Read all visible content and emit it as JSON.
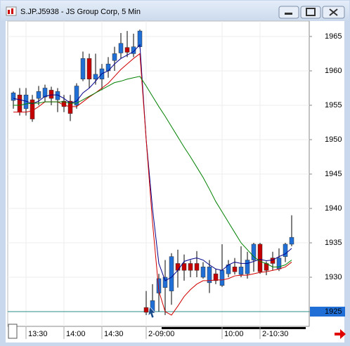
{
  "chart_data": {
    "type": "candlestick",
    "title": "S.JP.J5938 - JS Group Corp, 5 Min",
    "categories": [
      null,
      null,
      "13:30",
      null,
      null,
      null,
      null,
      null,
      "14:00",
      null,
      null,
      null,
      null,
      null,
      "14:30",
      null,
      null,
      null,
      null,
      null,
      null,
      "2-09:00",
      null,
      null,
      null,
      null,
      null,
      null,
      null,
      null,
      null,
      null,
      null,
      "10:00",
      null,
      null,
      null,
      null,
      null,
      "2-10:30",
      null,
      null,
      null,
      null,
      null
    ],
    "open": [
      1955.7,
      1956.5,
      1954.5,
      1955.8,
      1956,
      1956.2,
      1957.2,
      1955.8,
      1955.6,
      1955.6,
      1955,
      1958.8,
      1961.8,
      1958.8,
      1958.8,
      1960,
      1961.5,
      1962.6,
      1963.4,
      1962.5,
      1963.5,
      1925.6,
      1925,
      1927.7,
      1928.5,
      1928,
      1932,
      1932,
      1932,
      1932,
      1930,
      1929.2,
      1930.5,
      1928.8,
      1930.5,
      1931.5,
      1930.4,
      1930.5,
      1932.5,
      1934.8,
      1932,
      1932.8,
      1931.2,
      1933,
      1934.8
    ],
    "high": [
      1957,
      1957.5,
      1957.5,
      1956.5,
      1957.8,
      1958,
      1957.7,
      1957.5,
      1956.5,
      1956.5,
      1958.2,
      1962.8,
      1962.5,
      1962.5,
      1961,
      1962,
      1963.5,
      1965.5,
      1965.8,
      1965.4,
      1966,
      1928,
      1929,
      1930.5,
      1932.5,
      1933.5,
      1934,
      1933.3,
      1932.5,
      1933.8,
      1932.2,
      1932.5,
      1931.2,
      1934.8,
      1932.5,
      1932.8,
      1934.5,
      1933.7,
      1935,
      1935,
      1932.3,
      1933.7,
      1934.2,
      1935,
      1939
    ],
    "low": [
      1954.5,
      1953.5,
      1953.5,
      1952.6,
      1955,
      1955.5,
      1955,
      1954,
      1954,
      1952.7,
      1954.5,
      1958.5,
      1957.5,
      1958,
      1957.2,
      1959,
      1960,
      1961.8,
      1962,
      1962,
      1963.3,
      1924.5,
      1924.5,
      1925,
      1924.5,
      1926,
      1928.5,
      1929.5,
      1930,
      1930,
      1929.8,
      1927.7,
      1929,
      1928.6,
      1930,
      1930.4,
      1930,
      1929.8,
      1930.8,
      1930.5,
      1930.3,
      1931,
      1930.9,
      1932.2,
      1934.5
    ],
    "close": [
      1956.8,
      1954,
      1956.5,
      1953,
      1957,
      1957.5,
      1956,
      1957,
      1954.8,
      1953.8,
      1957.8,
      1961.8,
      1958.8,
      1959.5,
      1960.3,
      1961,
      1962.5,
      1964,
      1962.7,
      1963.5,
      1965.8,
      1924.9,
      1926.6,
      1929.8,
      1930,
      1933,
      1931,
      1931,
      1931,
      1931,
      1931.5,
      1931.5,
      1929.5,
      1931,
      1931.8,
      1930.8,
      1931.5,
      1932.5,
      1934.8,
      1930.8,
      1931,
      1932,
      1932.8,
      1934.8,
      1935.8
    ],
    "up_color": "#1f6fd6",
    "down_color": "#c40000",
    "series": [
      {
        "color": "#00008b",
        "values": [
          1956,
          1955.8,
          1955.6,
          1955.2,
          1955.6,
          1956.3,
          1956.5,
          1956.5,
          1956,
          1955.3,
          1955.6,
          1956.8,
          1957.5,
          1958.5,
          1959.6,
          1960,
          1961,
          1961.8,
          1962.3,
          1962.8,
          1963.8,
          1950,
          1940,
          1932,
          1929.5,
          1930,
          1931,
          1932.3,
          1932.6,
          1932.8,
          1932.5,
          1931.8,
          1931.2,
          1931,
          1931.8,
          1932.2,
          1932,
          1932,
          1932.3,
          1932.6,
          1932.4,
          1932.5,
          1933,
          1933.4,
          1934.2
        ]
      },
      {
        "color": "#d00000",
        "values": [
          1954,
          1954,
          1954,
          1954.2,
          1954.8,
          1955.5,
          1955.5,
          1955.5,
          1955,
          1954.8,
          1954.8,
          1955.5,
          1956.2,
          1956.8,
          1957.5,
          1958.2,
          1959.2,
          1960.2,
          1961,
          1961.8,
          1962.5,
          1950,
          1938,
          1928,
          1925,
          1924.5,
          1925.8,
          1927.2,
          1928.2,
          1929,
          1929.5,
          1929.5,
          1929.6,
          1929.6,
          1929.8,
          1930.2,
          1930.3,
          1930.3,
          1930.5,
          1930.7,
          1930.8,
          1931,
          1931.2,
          1931.5,
          1932.2
        ]
      },
      {
        "color": "#008000",
        "values": [
          1955,
          1955,
          1955.2,
          1955.3,
          1955.3,
          1955.5,
          1955.5,
          1955.5,
          1955.5,
          1955.3,
          1955.3,
          1955.8,
          1956.3,
          1956.8,
          1957.3,
          1957.8,
          1958.3,
          1958.5,
          1958.8,
          1959,
          1959.2,
          1957.8,
          1956.3,
          1954.8,
          1953.4,
          1951.9,
          1950.4,
          1948.9,
          1947.5,
          1946,
          1944.5,
          1942.8,
          1941,
          1939.5,
          1938,
          1936.5,
          1935,
          1934,
          1933,
          1932.3,
          1932,
          1931.5,
          1931.5,
          1931.8,
          1932.5
        ]
      }
    ],
    "reference_line": {
      "value": 1925,
      "color": "#2a8c8c"
    },
    "ylim": [
      1922.86,
      1967.24
    ],
    "yticks": [
      1925,
      1930,
      1935,
      1940,
      1945,
      1950,
      1955,
      1960,
      1965
    ],
    "grid": true
  }
}
